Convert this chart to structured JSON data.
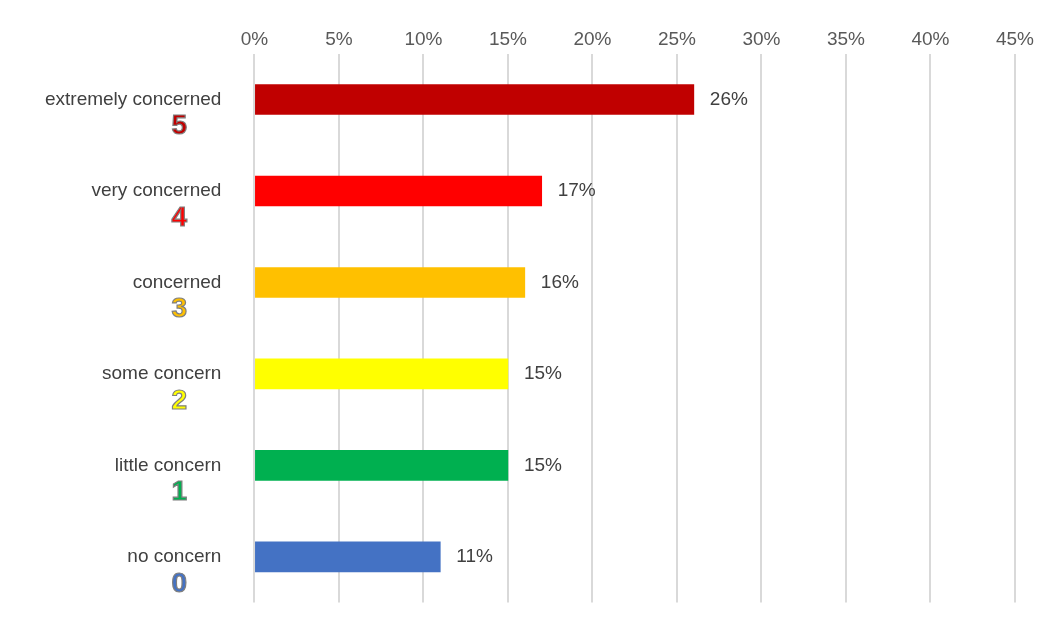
{
  "chart_data": {
    "type": "bar",
    "orientation": "horizontal",
    "categories": [
      "extremely concerned",
      "very concerned",
      "concerned",
      "some concern",
      "little concern",
      "no concern"
    ],
    "values": [
      26,
      17,
      16,
      15,
      15,
      11
    ],
    "colors": [
      "#c00000",
      "#ff0000",
      "#ffc000",
      "#ffff00",
      "#00b050",
      "#4472c4"
    ],
    "xlim": [
      0,
      45
    ],
    "xticks": [
      {
        "value": 0,
        "label": "0%"
      },
      {
        "value": 5,
        "label": "5%"
      },
      {
        "value": 10,
        "label": "10%"
      },
      {
        "value": 15,
        "label": "15%"
      },
      {
        "value": 20,
        "label": "20%"
      },
      {
        "value": 25,
        "label": "25%"
      },
      {
        "value": 30,
        "label": "30%"
      },
      {
        "value": 35,
        "label": "35%"
      },
      {
        "value": 40,
        "label": "40%"
      },
      {
        "value": 45,
        "label": "45%"
      }
    ],
    "value_labels": [
      "26%",
      "17%",
      "16%",
      "15%",
      "15%",
      "11%"
    ],
    "annotations": [
      "5",
      "4",
      "3",
      "2",
      "1",
      "0"
    ],
    "grid": "x"
  }
}
